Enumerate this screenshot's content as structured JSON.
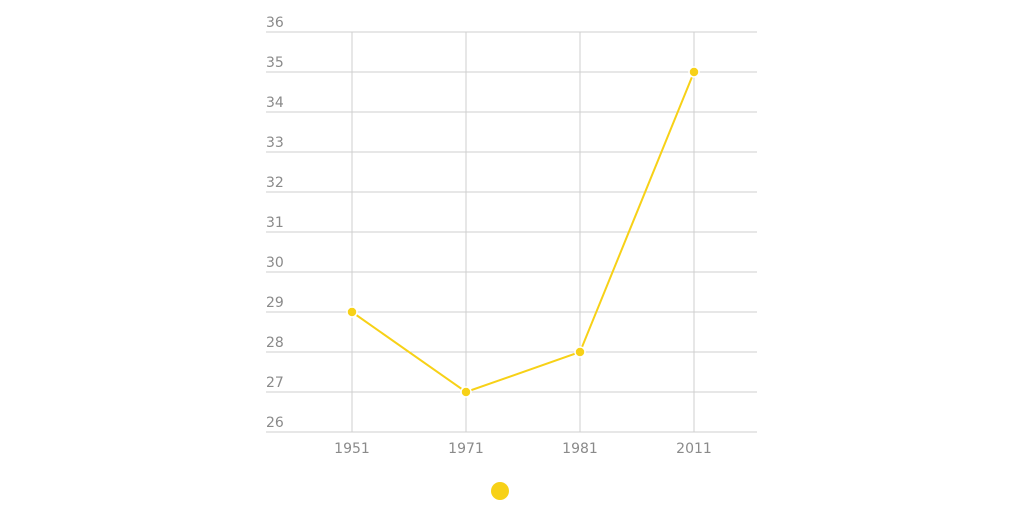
{
  "chart_data": {
    "type": "line",
    "categories": [
      "1951",
      "1971",
      "1981",
      "2011"
    ],
    "series": [
      {
        "color": "#f7d117",
        "values": [
          29,
          27,
          28,
          35
        ]
      }
    ],
    "ylim": [
      26,
      36
    ],
    "yticks": [
      26,
      27,
      28,
      29,
      30,
      31,
      32,
      33,
      34,
      35,
      36
    ],
    "grid": true
  }
}
